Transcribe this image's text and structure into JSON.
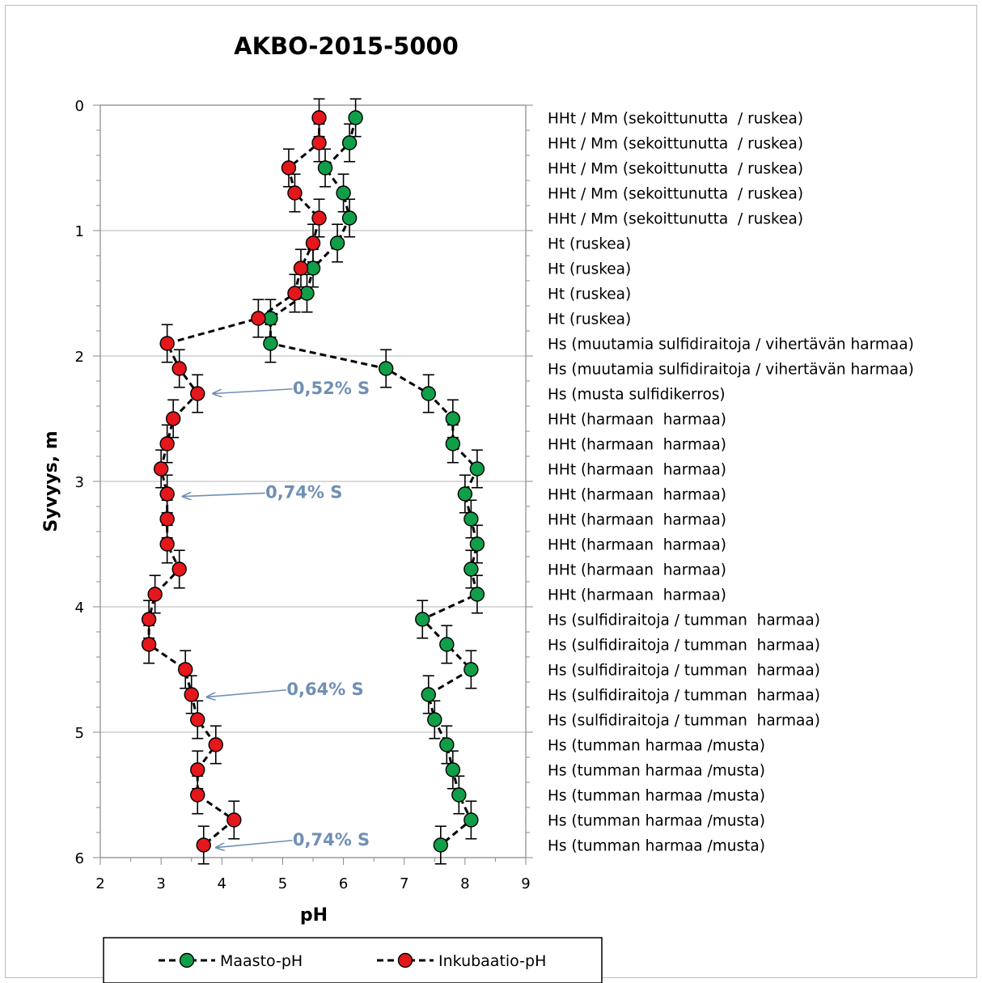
{
  "chart_data": {
    "type": "scatter",
    "title": "AKBO-2015-5000",
    "xlabel": "pH",
    "ylabel": "Syvyys, m",
    "xlim": [
      2,
      9
    ],
    "ylim": [
      0,
      6
    ],
    "y_inverted": true,
    "x_ticks": [
      "2",
      "3",
      "4",
      "5",
      "6",
      "7",
      "8",
      "9"
    ],
    "y_ticks": [
      "0",
      "1",
      "2",
      "3",
      "4",
      "5",
      "6"
    ],
    "grid": "horizontal",
    "legend_position": "bottom",
    "series": [
      {
        "name": "Maasto-pH",
        "color": "#109e48",
        "line_style": "dashed",
        "error_bar": 0.15,
        "points": [
          {
            "depth": 0.1,
            "ph": 6.2
          },
          {
            "depth": 0.3,
            "ph": 6.1
          },
          {
            "depth": 0.5,
            "ph": 5.7
          },
          {
            "depth": 0.7,
            "ph": 6.0
          },
          {
            "depth": 0.9,
            "ph": 6.1
          },
          {
            "depth": 1.1,
            "ph": 5.9
          },
          {
            "depth": 1.3,
            "ph": 5.5
          },
          {
            "depth": 1.5,
            "ph": 5.4
          },
          {
            "depth": 1.7,
            "ph": 4.8
          },
          {
            "depth": 1.9,
            "ph": 4.8
          },
          {
            "depth": 2.1,
            "ph": 6.7
          },
          {
            "depth": 2.3,
            "ph": 7.4
          },
          {
            "depth": 2.5,
            "ph": 7.8
          },
          {
            "depth": 2.7,
            "ph": 7.8
          },
          {
            "depth": 2.9,
            "ph": 8.2
          },
          {
            "depth": 3.1,
            "ph": 8.0
          },
          {
            "depth": 3.3,
            "ph": 8.1
          },
          {
            "depth": 3.5,
            "ph": 8.2
          },
          {
            "depth": 3.7,
            "ph": 8.1
          },
          {
            "depth": 3.9,
            "ph": 8.2
          },
          {
            "depth": 4.1,
            "ph": 7.3
          },
          {
            "depth": 4.3,
            "ph": 7.7
          },
          {
            "depth": 4.5,
            "ph": 8.1
          },
          {
            "depth": 4.7,
            "ph": 7.4
          },
          {
            "depth": 4.9,
            "ph": 7.5
          },
          {
            "depth": 5.1,
            "ph": 7.7
          },
          {
            "depth": 5.3,
            "ph": 7.8
          },
          {
            "depth": 5.5,
            "ph": 7.9
          },
          {
            "depth": 5.7,
            "ph": 8.1
          },
          {
            "depth": 5.9,
            "ph": 7.6
          }
        ]
      },
      {
        "name": "Inkubaatio-pH",
        "color": "#e3171c",
        "line_style": "dashed",
        "error_bar": 0.15,
        "points": [
          {
            "depth": 0.1,
            "ph": 5.6
          },
          {
            "depth": 0.3,
            "ph": 5.6
          },
          {
            "depth": 0.5,
            "ph": 5.1
          },
          {
            "depth": 0.7,
            "ph": 5.2
          },
          {
            "depth": 0.9,
            "ph": 5.6
          },
          {
            "depth": 1.1,
            "ph": 5.5
          },
          {
            "depth": 1.3,
            "ph": 5.3
          },
          {
            "depth": 1.5,
            "ph": 5.2
          },
          {
            "depth": 1.7,
            "ph": 4.6
          },
          {
            "depth": 1.9,
            "ph": 3.1
          },
          {
            "depth": 2.1,
            "ph": 3.3
          },
          {
            "depth": 2.3,
            "ph": 3.6
          },
          {
            "depth": 2.5,
            "ph": 3.2
          },
          {
            "depth": 2.7,
            "ph": 3.1
          },
          {
            "depth": 2.9,
            "ph": 3.0
          },
          {
            "depth": 3.1,
            "ph": 3.1
          },
          {
            "depth": 3.3,
            "ph": 3.1
          },
          {
            "depth": 3.5,
            "ph": 3.1
          },
          {
            "depth": 3.7,
            "ph": 3.3
          },
          {
            "depth": 3.9,
            "ph": 2.9
          },
          {
            "depth": 4.1,
            "ph": 2.8
          },
          {
            "depth": 4.3,
            "ph": 2.8
          },
          {
            "depth": 4.5,
            "ph": 3.4
          },
          {
            "depth": 4.7,
            "ph": 3.5
          },
          {
            "depth": 4.9,
            "ph": 3.6
          },
          {
            "depth": 5.1,
            "ph": 3.9
          },
          {
            "depth": 5.3,
            "ph": 3.6
          },
          {
            "depth": 5.5,
            "ph": 3.6
          },
          {
            "depth": 5.7,
            "ph": 4.2
          },
          {
            "depth": 5.9,
            "ph": 3.7
          }
        ]
      }
    ],
    "annotations": [
      {
        "text": "0,52% S",
        "color": "#6f8fb5",
        "target_depth": 2.3,
        "target_ph": 3.8,
        "label_depth": 2.25,
        "label_ph": 5.8
      },
      {
        "text": "0,74% S",
        "color": "#6f8fb5",
        "target_depth": 3.12,
        "target_ph": 3.3,
        "label_depth": 3.08,
        "label_ph": 5.35
      },
      {
        "text": "0,64% S",
        "color": "#6f8fb5",
        "target_depth": 4.72,
        "target_ph": 3.7,
        "label_depth": 4.65,
        "label_ph": 5.7
      },
      {
        "text": "0,74% S",
        "color": "#6f8fb5",
        "target_depth": 5.92,
        "target_ph": 3.85,
        "label_depth": 5.85,
        "label_ph": 5.8
      }
    ],
    "layer_labels": [
      {
        "depth": 0.1,
        "text": "HHt / Mm (sekoittunutta  / ruskea)"
      },
      {
        "depth": 0.3,
        "text": "HHt / Mm (sekoittunutta  / ruskea)"
      },
      {
        "depth": 0.5,
        "text": "HHt / Mm (sekoittunutta  / ruskea)"
      },
      {
        "depth": 0.7,
        "text": "HHt / Mm (sekoittunutta  / ruskea)"
      },
      {
        "depth": 0.9,
        "text": "HHt / Mm (sekoittunutta  / ruskea)"
      },
      {
        "depth": 1.1,
        "text": "Ht (ruskea)"
      },
      {
        "depth": 1.3,
        "text": "Ht (ruskea)"
      },
      {
        "depth": 1.5,
        "text": "Ht (ruskea)"
      },
      {
        "depth": 1.7,
        "text": "Ht (ruskea)"
      },
      {
        "depth": 1.9,
        "text": "Hs (muutamia sulfidiraitoja / vihertävän harmaa)"
      },
      {
        "depth": 2.1,
        "text": "Hs (muutamia sulfidiraitoja / vihertävän harmaa)"
      },
      {
        "depth": 2.3,
        "text": "Hs (musta sulfidikerros)"
      },
      {
        "depth": 2.5,
        "text": "HHt (harmaan  harmaa)"
      },
      {
        "depth": 2.7,
        "text": "HHt (harmaan  harmaa)"
      },
      {
        "depth": 2.9,
        "text": "HHt (harmaan  harmaa)"
      },
      {
        "depth": 3.1,
        "text": "HHt (harmaan  harmaa)"
      },
      {
        "depth": 3.3,
        "text": "HHt (harmaan  harmaa)"
      },
      {
        "depth": 3.5,
        "text": "HHt (harmaan  harmaa)"
      },
      {
        "depth": 3.7,
        "text": "HHt (harmaan  harmaa)"
      },
      {
        "depth": 3.9,
        "text": "HHt (harmaan  harmaa)"
      },
      {
        "depth": 4.1,
        "text": "Hs (sulfidiraitoja / tumman  harmaa)"
      },
      {
        "depth": 4.3,
        "text": "Hs (sulfidiraitoja / tumman  harmaa)"
      },
      {
        "depth": 4.5,
        "text": "Hs (sulfidiraitoja / tumman  harmaa)"
      },
      {
        "depth": 4.7,
        "text": "Hs (sulfidiraitoja / tumman  harmaa)"
      },
      {
        "depth": 4.9,
        "text": "Hs (sulfidiraitoja / tumman  harmaa)"
      },
      {
        "depth": 5.1,
        "text": "Hs (tumman harmaa /musta)"
      },
      {
        "depth": 5.3,
        "text": "Hs (tumman harmaa /musta)"
      },
      {
        "depth": 5.5,
        "text": "Hs (tumman harmaa /musta)"
      },
      {
        "depth": 5.7,
        "text": "Hs (tumman harmaa /musta)"
      },
      {
        "depth": 5.9,
        "text": "Hs (tumman harmaa /musta)"
      }
    ]
  }
}
